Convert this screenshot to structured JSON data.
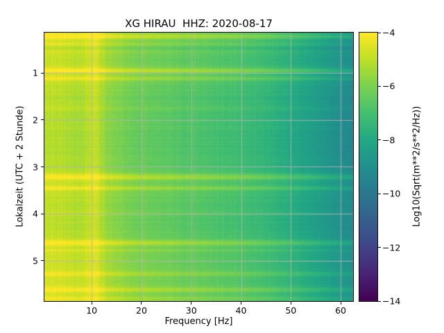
{
  "figure": {
    "background": "#ffffff"
  },
  "chart_data": {
    "type": "heatmap",
    "title": "XG HIRAU  HHZ: 2020-08-17",
    "xlabel": "Frequency [Hz]",
    "ylabel": "Lokalzeit (UTC + 2 Stunde)",
    "colorbar_label": "Log10(Sqrt(m**2/s**2/Hz))",
    "x_range": [
      0.5,
      62.5
    ],
    "y_range": [
      0.14,
      5.86
    ],
    "y_inverted": true,
    "clim": [
      -14,
      -4
    ],
    "grid": true,
    "grid_color": "#b4b4b4",
    "xticks": [
      10,
      20,
      30,
      40,
      50,
      60
    ],
    "xtick_labels": [
      "10",
      "20",
      "30",
      "40",
      "50",
      "60"
    ],
    "yticks": [
      1,
      2,
      3,
      4,
      5
    ],
    "ytick_labels": [
      "1",
      "2",
      "3",
      "4",
      "5"
    ],
    "colorbar_ticks": [
      -4,
      -6,
      -8,
      -10,
      -12,
      -14
    ],
    "colorbar_tick_labels": [
      "−4",
      "−6",
      "−8",
      "−10",
      "−12",
      "−14"
    ],
    "colormap": {
      "name": "viridis",
      "stops": [
        [
          0.0,
          "#440154"
        ],
        [
          0.1,
          "#482475"
        ],
        [
          0.2,
          "#414487"
        ],
        [
          0.3,
          "#355f8d"
        ],
        [
          0.4,
          "#2a788e"
        ],
        [
          0.5,
          "#21908d"
        ],
        [
          0.6,
          "#22a884"
        ],
        [
          0.7,
          "#44bf70"
        ],
        [
          0.8,
          "#7ad151"
        ],
        [
          0.9,
          "#bddf26"
        ],
        [
          1.0,
          "#fde725"
        ]
      ]
    },
    "freqs": [
      0.5,
      2,
      5,
      8,
      10.5,
      13,
      18,
      25,
      32,
      40,
      47,
      53,
      58,
      62.5
    ],
    "times": [
      0.14,
      0.5,
      1.0,
      1.5,
      2.0,
      2.5,
      3.0,
      3.5,
      4.0,
      4.5,
      5.0,
      5.5,
      5.86
    ],
    "values": [
      [
        -4.8,
        -4.7,
        -4.9,
        -5.0,
        -4.5,
        -5.4,
        -5.9,
        -6.2,
        -6.5,
        -6.8,
        -7.3,
        -7.9,
        -8.5,
        -9.0
      ],
      [
        -5.0,
        -4.9,
        -5.1,
        -5.2,
        -4.7,
        -5.6,
        -6.1,
        -6.4,
        -6.7,
        -7.0,
        -7.5,
        -8.1,
        -8.7,
        -9.2
      ],
      [
        -4.8,
        -4.7,
        -4.9,
        -5.0,
        -4.5,
        -5.4,
        -5.9,
        -6.2,
        -6.5,
        -6.8,
        -7.3,
        -7.9,
        -8.5,
        -9.0
      ],
      [
        -5.1,
        -5.0,
        -5.2,
        -5.3,
        -4.8,
        -5.7,
        -6.2,
        -6.5,
        -6.8,
        -7.1,
        -7.6,
        -8.2,
        -8.8,
        -9.3
      ],
      [
        -5.15,
        -5.05,
        -5.25,
        -5.35,
        -4.85,
        -5.75,
        -6.25,
        -6.55,
        -6.85,
        -7.15,
        -7.65,
        -8.25,
        -8.85,
        -9.35
      ],
      [
        -5.2,
        -5.1,
        -5.3,
        -5.4,
        -4.9,
        -5.8,
        -6.3,
        -6.6,
        -6.9,
        -7.2,
        -7.7,
        -8.3,
        -8.9,
        -9.4
      ],
      [
        -5.1,
        -5.0,
        -5.2,
        -5.3,
        -4.8,
        -5.7,
        -6.2,
        -6.5,
        -6.8,
        -7.1,
        -7.6,
        -8.2,
        -8.8,
        -9.3
      ],
      [
        -4.9,
        -4.8,
        -5.0,
        -5.1,
        -4.6,
        -5.5,
        -6.0,
        -6.3,
        -6.6,
        -6.9,
        -7.4,
        -8.0,
        -8.6,
        -9.1
      ],
      [
        -5.1,
        -5.0,
        -5.2,
        -5.3,
        -4.8,
        -5.7,
        -6.2,
        -6.5,
        -6.8,
        -7.1,
        -7.6,
        -8.2,
        -8.8,
        -9.3
      ],
      [
        -5.0,
        -4.9,
        -5.1,
        -5.2,
        -4.7,
        -5.6,
        -6.1,
        -6.4,
        -6.7,
        -7.0,
        -7.5,
        -8.1,
        -8.7,
        -9.2
      ],
      [
        -4.75,
        -4.65,
        -4.85,
        -4.95,
        -4.45,
        -5.35,
        -5.85,
        -6.15,
        -6.45,
        -6.75,
        -7.25,
        -7.85,
        -8.45,
        -8.95
      ],
      [
        -4.7,
        -4.6,
        -4.8,
        -4.9,
        -4.4,
        -5.3,
        -5.8,
        -6.1,
        -6.4,
        -6.7,
        -7.2,
        -7.8,
        -8.4,
        -8.9
      ],
      [
        -4.65,
        -4.55,
        -4.75,
        -4.85,
        -4.35,
        -5.25,
        -5.75,
        -6.05,
        -6.35,
        -6.65,
        -7.15,
        -7.75,
        -8.35,
        -8.85
      ]
    ],
    "bright_bands": [
      {
        "time": 0.22,
        "amp": 1.3,
        "sigma": 0.045
      },
      {
        "time": 0.38,
        "amp": 0.6,
        "sigma": 0.03
      },
      {
        "time": 0.55,
        "amp": 0.4,
        "sigma": 0.03
      },
      {
        "time": 0.95,
        "amp": 1.1,
        "sigma": 0.04
      },
      {
        "time": 1.12,
        "amp": 0.8,
        "sigma": 0.03
      },
      {
        "time": 1.75,
        "amp": 0.35,
        "sigma": 0.03
      },
      {
        "time": 3.22,
        "amp": 1.2,
        "sigma": 0.05
      },
      {
        "time": 3.45,
        "amp": 0.9,
        "sigma": 0.035
      },
      {
        "time": 4.0,
        "amp": 0.3,
        "sigma": 0.03
      },
      {
        "time": 4.62,
        "amp": 1.1,
        "sigma": 0.045
      },
      {
        "time": 4.78,
        "amp": 0.5,
        "sigma": 0.03
      },
      {
        "time": 5.28,
        "amp": 0.6,
        "sigma": 0.035
      },
      {
        "time": 5.62,
        "amp": 0.9,
        "sigma": 0.04
      },
      {
        "time": 5.8,
        "amp": 0.6,
        "sigma": 0.03
      }
    ],
    "noise": {
      "row": 0.25,
      "col": 0.35,
      "pixel": 0.3
    }
  }
}
